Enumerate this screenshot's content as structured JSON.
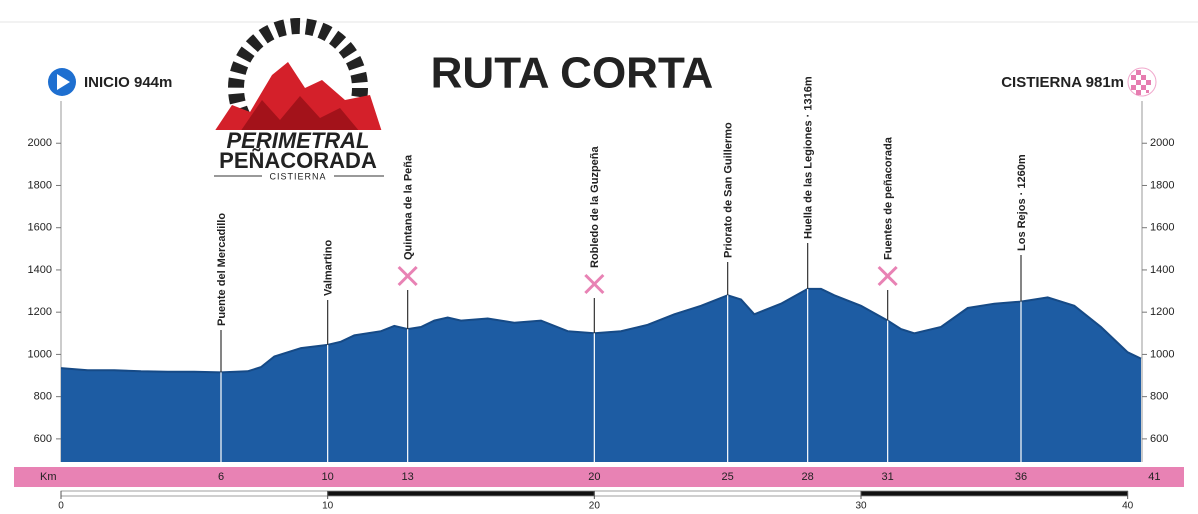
{
  "chart_data": {
    "type": "area",
    "title": "RUTA CORTA",
    "start_label": "INICIO 944m",
    "end_label": "CISTIERNA 981m",
    "logo": {
      "line1": "PERIMETRAL",
      "line2": "PEÑACORADA",
      "line3": "CISTIERNA"
    },
    "x": [
      0,
      1,
      2,
      3,
      4,
      5,
      6,
      7,
      7.5,
      8,
      9,
      10,
      10.5,
      11,
      12,
      12.5,
      13,
      13.5,
      14,
      14.5,
      15,
      16,
      17,
      18,
      19,
      20,
      21,
      22,
      23,
      24,
      25,
      25.5,
      26,
      27,
      28,
      28.5,
      29,
      30,
      31,
      31.5,
      32,
      33,
      34,
      35,
      36,
      37,
      38,
      39,
      40,
      40.5
    ],
    "values": [
      935,
      925,
      925,
      920,
      918,
      918,
      915,
      920,
      940,
      990,
      1030,
      1045,
      1060,
      1090,
      1110,
      1135,
      1120,
      1130,
      1160,
      1175,
      1160,
      1170,
      1150,
      1160,
      1110,
      1100,
      1110,
      1140,
      1190,
      1230,
      1280,
      1260,
      1190,
      1240,
      1310,
      1310,
      1280,
      1230,
      1160,
      1120,
      1100,
      1130,
      1220,
      1240,
      1250,
      1270,
      1230,
      1130,
      1010,
      980
    ],
    "color": "#1d5ca3",
    "xlim": [
      0,
      40.5
    ],
    "ylim": [
      500,
      2200
    ],
    "yticks": [
      600,
      800,
      1000,
      1200,
      1400,
      1600,
      1800,
      2000
    ],
    "xticks": [
      0,
      10,
      20,
      30,
      40
    ],
    "km_label": "Km",
    "total_km": 41,
    "waypoints": [
      {
        "name": "Puente del Mercadillo",
        "km": 6,
        "food": false
      },
      {
        "name": "Valmartino",
        "km": 10,
        "food": false
      },
      {
        "name": "Quintana de la Peña",
        "km": 13,
        "food": true
      },
      {
        "name": "Robledo de la Guzpeña",
        "km": 20,
        "food": true
      },
      {
        "name": "Priorato de San Guillermo",
        "km": 25,
        "food": false
      },
      {
        "name": "Huella de las Legiones · 1316m",
        "km": 28,
        "food": false
      },
      {
        "name": "Fuentes de peñacorada",
        "km": 31,
        "food": true
      },
      {
        "name": "Los Rejos · 1260m",
        "km": 36,
        "food": false
      }
    ]
  }
}
